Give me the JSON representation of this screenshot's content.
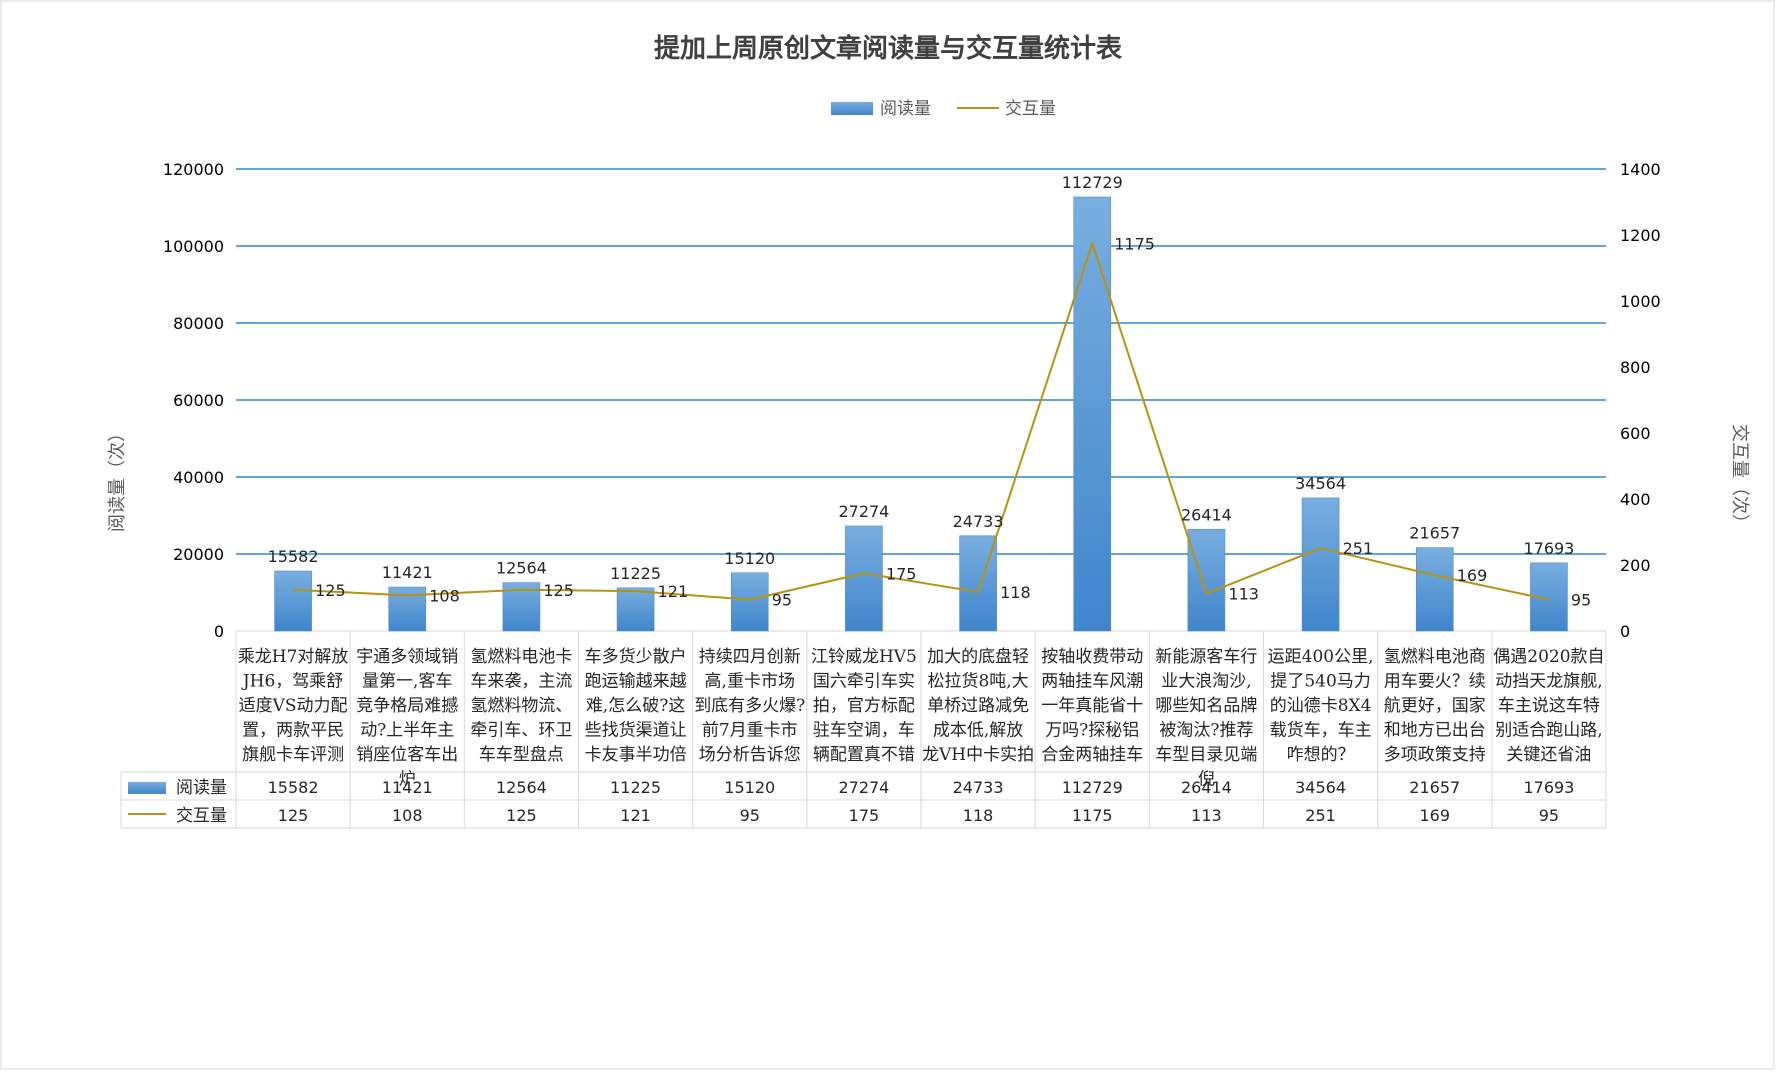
{
  "chart_data": {
    "type": "bar",
    "title": "提加上周原创文章阅读量与交互量统计表",
    "ylabel": "阅读量（次）",
    "y2label": "交互量（次）",
    "ylim": [
      0,
      120000
    ],
    "y2lim": [
      0,
      1400
    ],
    "yticks": [
      "0",
      "20000",
      "40000",
      "60000",
      "80000",
      "100000",
      "120000"
    ],
    "y2ticks": [
      "0",
      "200",
      "400",
      "600",
      "800",
      "1000",
      "1200",
      "1400"
    ],
    "grid": true,
    "legend_position": "top",
    "data_table": true,
    "categories": [
      "乘龙H7对解放JH6，驾乘舒适度VS动力配置，两款平民旗舰卡车评测",
      "宇通多领域销量第一,客车竞争格局难撼动?上半年主销座位客车出炉",
      "氢燃料电池卡车来袭，主流氢燃料物流、牵引车、环卫车车型盘点",
      "车多货少散户跑运输越来越难,怎么破?这些找货渠道让卡友事半功倍",
      "持续四月创新高,重卡市场到底有多火爆?前7月重卡市场分析告诉您",
      "江铃威龙HV5国六牵引车实拍，官方标配驻车空调，车辆配置真不错",
      "加大的底盘轻松拉货8吨,大单桥过路减免成本低,解放龙VH中卡实拍",
      "按轴收费带动两轴挂车风潮，一年真能省十万吗?探秘铝合金两轴挂车",
      "新能源客车行业大浪淘沙,哪些知名品牌被淘汰?推荐车型目录见端倪",
      "运距400公里，提了540马力的汕德卡8X4载货车，车主咋想的？",
      "氢燃料电池商用车要火？续航更好，国家和地方已出台多项政策支持",
      "偶遇2020款自动挡天龙旗舰,车主说这车特别适合跑山路,关键还省油"
    ],
    "category_lines": [
      [
        "乘龙H7对解放",
        "JH6，驾乘舒",
        "适度VS动力配",
        "置，两款平民",
        "旗舰卡车评测"
      ],
      [
        "宇通多领域销",
        "量第一,客车",
        "竞争格局难撼",
        "动?上半年主",
        "销座位客车出",
        "炉"
      ],
      [
        "氢燃料电池卡",
        "车来袭，主流",
        "氢燃料物流、",
        "牵引车、环卫",
        "车车型盘点"
      ],
      [
        "车多货少散户",
        "跑运输越来越",
        "难,怎么破?这",
        "些找货渠道让",
        "卡友事半功倍"
      ],
      [
        "持续四月创新",
        "高,重卡市场",
        "到底有多火爆?",
        "前7月重卡市",
        "场分析告诉您"
      ],
      [
        "江铃威龙HV5",
        "国六牵引车实",
        "拍，官方标配",
        "驻车空调，车",
        "辆配置真不错"
      ],
      [
        "加大的底盘轻",
        "松拉货8吨,大",
        "单桥过路减免",
        "成本低,解放",
        "龙VH中卡实拍"
      ],
      [
        "按轴收费带动",
        "两轴挂车风潮",
        "一年真能省十",
        "万吗?探秘铝",
        "合金两轴挂车"
      ],
      [
        "新能源客车行",
        "业大浪淘沙,",
        "哪些知名品牌",
        "被淘汰?推荐",
        "车型目录见端",
        "倪"
      ],
      [
        "运距400公里,",
        "提了540马力",
        "的汕德卡8X4",
        "载货车，车主",
        "咋想的？"
      ],
      [
        "氢燃料电池商",
        "用车要火？续",
        "航更好，国家",
        "和地方已出台",
        "多项政策支持"
      ],
      [
        "偶遇2020款自",
        "动挡天龙旗舰,",
        "车主说这车特",
        "别适合跑山路,",
        "关键还省油"
      ]
    ],
    "series": [
      {
        "name": "阅读量",
        "type": "bar",
        "axis": "left",
        "color": "#5B9BD5",
        "values": [
          15582,
          11421,
          12564,
          11225,
          15120,
          27274,
          24733,
          112729,
          26414,
          34564,
          21657,
          17693
        ],
        "labels": [
          "15582",
          "11421",
          "12564",
          "11225",
          "15120",
          "27274",
          "24733",
          "112729",
          "26414",
          "34564",
          "21657",
          "17693"
        ]
      },
      {
        "name": "交互量",
        "type": "line",
        "axis": "right",
        "color": "#B8930F",
        "values": [
          125,
          108,
          125,
          121,
          95,
          175,
          118,
          1175,
          113,
          251,
          169,
          95
        ],
        "labels": [
          "125",
          "108",
          "125",
          "121",
          "95",
          "175",
          "118",
          "1175",
          "113",
          "251",
          "169",
          "95"
        ]
      }
    ]
  }
}
